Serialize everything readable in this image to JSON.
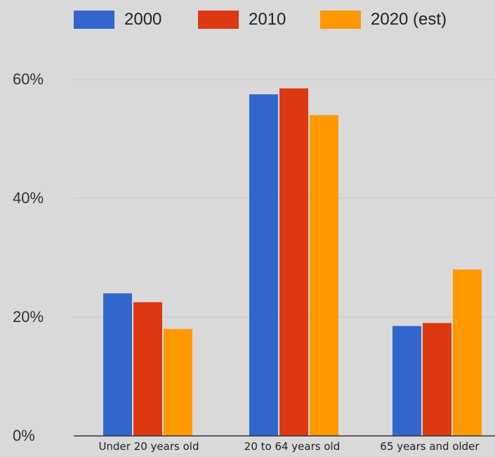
{
  "chart_data": {
    "type": "bar",
    "categories": [
      "Under 20 years old",
      "20 to 64 years old",
      "65 years and older"
    ],
    "series": [
      {
        "name": "2000",
        "values": [
          24,
          57.5,
          18.5
        ],
        "color": "#3366cc"
      },
      {
        "name": "2010",
        "values": [
          22.5,
          58.5,
          19
        ],
        "color": "#dc3912"
      },
      {
        "name": "2020 (est)",
        "values": [
          18,
          54,
          28
        ],
        "color": "#ff9900"
      }
    ],
    "y_ticks": [
      "0%",
      "20%",
      "40%",
      "60%"
    ],
    "y_tick_values": [
      0,
      20,
      40,
      60
    ],
    "ylim": [
      0,
      60
    ],
    "grid": true,
    "legend_position": "top"
  }
}
